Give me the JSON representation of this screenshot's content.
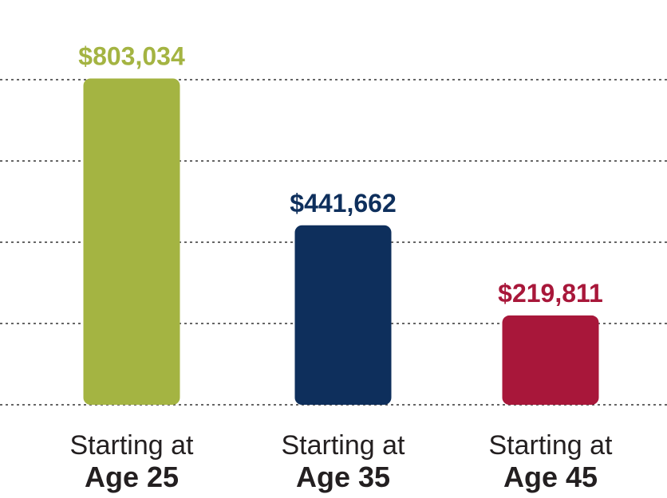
{
  "chart_data": {
    "type": "bar",
    "categories": [
      {
        "line1": "Starting at",
        "line2": "Age 25"
      },
      {
        "line1": "Starting at",
        "line2": "Age 35"
      },
      {
        "line1": "Starting at",
        "line2": "Age 45"
      }
    ],
    "values": [
      803034,
      441662,
      219811
    ],
    "value_labels": [
      "$803,034",
      "$441,662",
      "$219,811"
    ],
    "colors": [
      "#a4b442",
      "#0e2f5c",
      "#a8173a"
    ],
    "ylim": [
      0,
      1000000
    ],
    "gridlines": [
      200000,
      400000,
      600000,
      800000
    ],
    "grid": true,
    "title": "",
    "xlabel": "",
    "ylabel": ""
  }
}
